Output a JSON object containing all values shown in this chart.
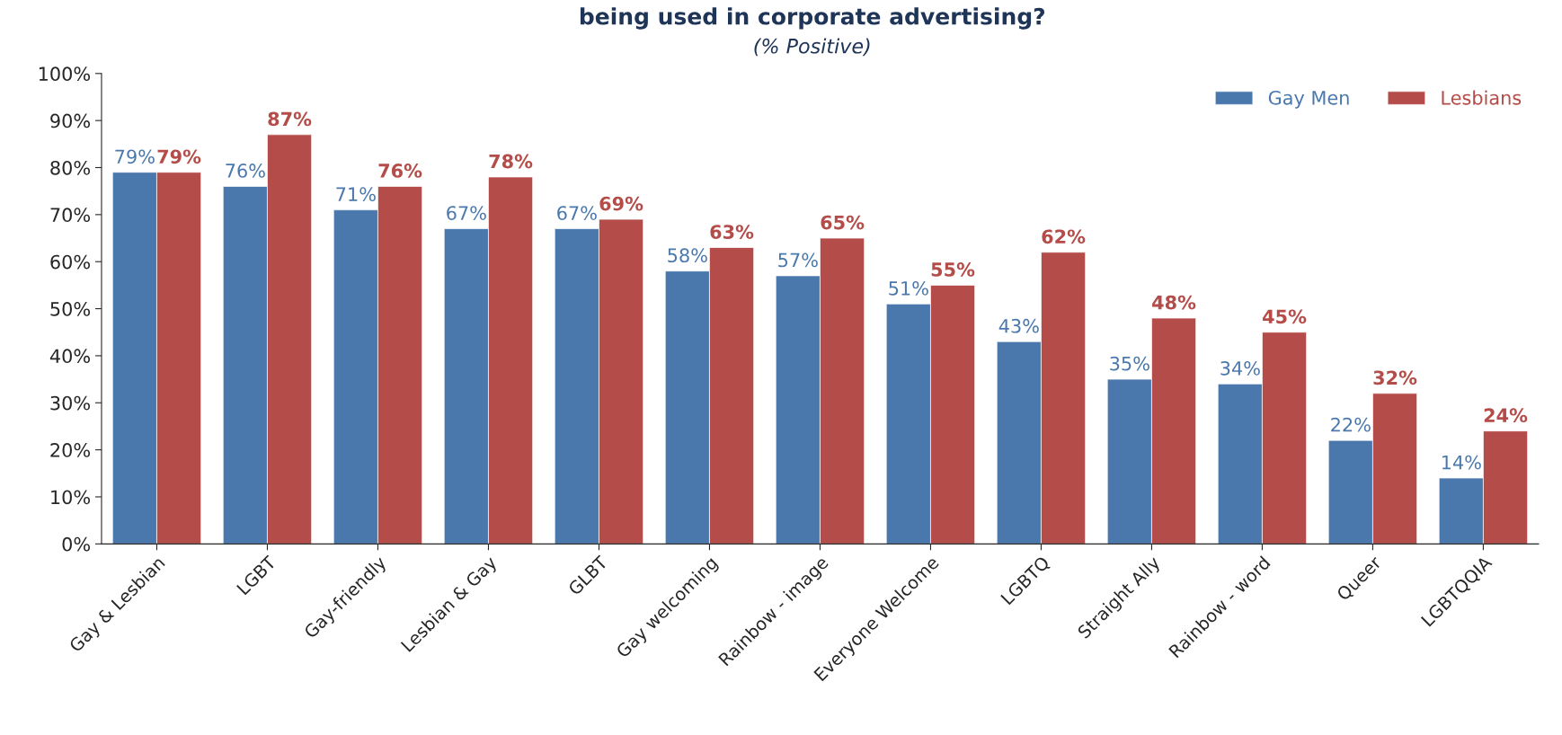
{
  "chart_data": {
    "type": "bar",
    "title": "being used in corporate advertising?",
    "subtitle": "(% Positive)",
    "categories": [
      "Gay & Lesbian",
      "LGBT",
      "Gay-friendly",
      "Lesbian & Gay",
      "GLBT",
      "Gay welcoming",
      "Rainbow - image",
      "Everyone Welcome",
      "LGBTQ",
      "Straight Ally",
      "Rainbow - word",
      "Queer",
      "LGBTQQIA"
    ],
    "series": [
      {
        "name": "Gay Men",
        "color": "#4a78ad",
        "values": [
          79,
          76,
          71,
          67,
          67,
          58,
          57,
          51,
          43,
          35,
          34,
          22,
          14
        ],
        "value_labels": [
          "79%",
          "76%",
          "71%",
          "67%",
          "67%",
          "58%",
          "57%",
          "51%",
          "43%",
          "35%",
          "34%",
          "22%",
          "14%"
        ]
      },
      {
        "name": "Lesbians",
        "color": "#b44d49",
        "values": [
          79,
          87,
          76,
          78,
          69,
          63,
          65,
          55,
          62,
          48,
          45,
          32,
          24
        ],
        "value_labels": [
          "79%",
          "87%",
          "76%",
          "78%",
          "69%",
          "63%",
          "65%",
          "55%",
          "62%",
          "48%",
          "45%",
          "32%",
          "24%"
        ]
      }
    ],
    "ylim": [
      0,
      100
    ],
    "yticks": [
      {
        "value": 0,
        "label": "0%"
      },
      {
        "value": 10,
        "label": "10%"
      },
      {
        "value": 20,
        "label": "20%"
      },
      {
        "value": 30,
        "label": "30%"
      },
      {
        "value": 40,
        "label": "40%"
      },
      {
        "value": 50,
        "label": "50%"
      },
      {
        "value": 60,
        "label": "60%"
      },
      {
        "value": 70,
        "label": "70%"
      },
      {
        "value": 80,
        "label": "80%"
      },
      {
        "value": 90,
        "label": "90%"
      },
      {
        "value": 100,
        "label": "100%"
      }
    ],
    "legend": "top right",
    "grid": false
  }
}
